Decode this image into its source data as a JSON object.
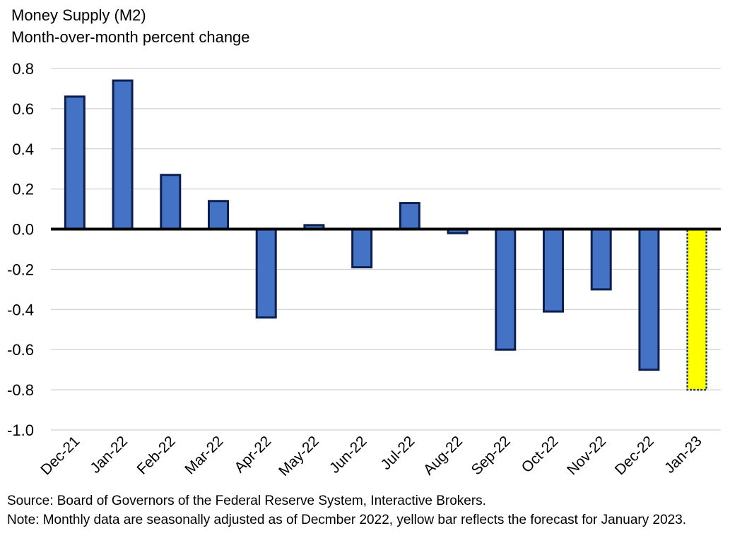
{
  "chart_data": {
    "type": "bar",
    "title": "Money Supply (M2)",
    "subtitle": "Month-over-month percent change",
    "xlabel": "",
    "ylabel": "",
    "ylim": [
      -1.0,
      0.8
    ],
    "yticks": [
      "0.8",
      "0.6",
      "0.4",
      "0.2",
      "0.0",
      "-0.2",
      "-0.4",
      "-0.6",
      "-0.8",
      "-1.0"
    ],
    "ytick_values": [
      0.8,
      0.6,
      0.4,
      0.2,
      0.0,
      -0.2,
      -0.4,
      -0.6,
      -0.8,
      -1.0
    ],
    "grid": true,
    "categories": [
      "Dec-21",
      "Jan-22",
      "Feb-22",
      "Mar-22",
      "Apr-22",
      "May-22",
      "Jun-22",
      "Jul-22",
      "Aug-22",
      "Sep-22",
      "Oct-22",
      "Nov-22",
      "Dec-22",
      "Jan-23"
    ],
    "values": [
      0.66,
      0.74,
      0.27,
      0.14,
      -0.44,
      0.02,
      -0.19,
      0.13,
      -0.02,
      -0.6,
      -0.41,
      -0.3,
      -0.7,
      -0.8
    ],
    "forecast_index": 13,
    "colors": {
      "bar_fill": "#4472c4",
      "bar_outline": "#0d1f4f",
      "forecast_fill": "#ffff00",
      "forecast_outline": "#1f3864",
      "grid": "#d0d0d0",
      "zero_line": "#000000"
    }
  },
  "notes": {
    "source": "Source: Board of Governors of the Federal Reserve System, Interactive Brokers.",
    "note": "Note: Monthly data are seasonally adjusted as of Decmber 2022, yellow bar reflects the forecast for January 2023."
  }
}
